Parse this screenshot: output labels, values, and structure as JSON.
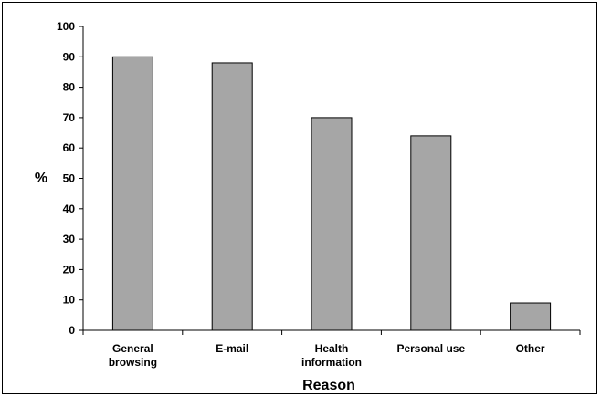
{
  "chart_data": {
    "type": "bar",
    "categories": [
      [
        "General",
        "browsing"
      ],
      [
        "E-mail"
      ],
      [
        "Health",
        "information"
      ],
      [
        "Personal use"
      ],
      [
        "Other"
      ]
    ],
    "values": [
      90,
      88,
      70,
      64,
      9
    ],
    "xlabel": "Reason",
    "ylabel": "%",
    "ylim": [
      0,
      100
    ],
    "yticks": [
      0,
      10,
      20,
      30,
      40,
      50,
      60,
      70,
      80,
      90,
      100
    ],
    "grid": false,
    "bar_color": "#a6a6a6"
  }
}
